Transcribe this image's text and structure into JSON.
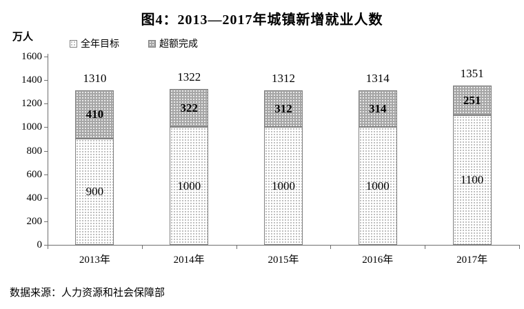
{
  "title": "图4：2013—2017年城镇新增就业人数",
  "unit_label": "万人",
  "legend": {
    "items": [
      {
        "label": "全年目标",
        "swatch": "light-dotted-square"
      },
      {
        "label": "超额完成",
        "swatch": "dark-dotted-square"
      }
    ]
  },
  "source": "数据来源：人力资源和社会保障部",
  "colors": {
    "bar_light_bg": "#ffffff",
    "bar_light_dot": "#a8a8a8",
    "bar_dark_bg": "#a6a6a6",
    "bar_dark_dot": "#ffffff",
    "bar_border": "#7f7f7f",
    "axis": "#6e6e6e",
    "text": "#000000"
  },
  "chart_data": {
    "type": "bar",
    "stacked": true,
    "title": "图4：2013—2017年城镇新增就业人数",
    "categories": [
      "2013年",
      "2014年",
      "2015年",
      "2016年",
      "2017年"
    ],
    "series": [
      {
        "name": "全年目标",
        "values": [
          900,
          1000,
          1000,
          1000,
          1100
        ]
      },
      {
        "name": "超额完成",
        "values": [
          410,
          322,
          312,
          314,
          251
        ]
      }
    ],
    "totals": [
      1310,
      1322,
      1312,
      1314,
      1351
    ],
    "xlabel": "",
    "ylabel": "万人",
    "ylim": [
      0,
      1600
    ],
    "yticks": [
      0,
      200,
      400,
      600,
      800,
      1000,
      1200,
      1400,
      1600
    ],
    "grid": false,
    "legend_position": "top-left"
  }
}
